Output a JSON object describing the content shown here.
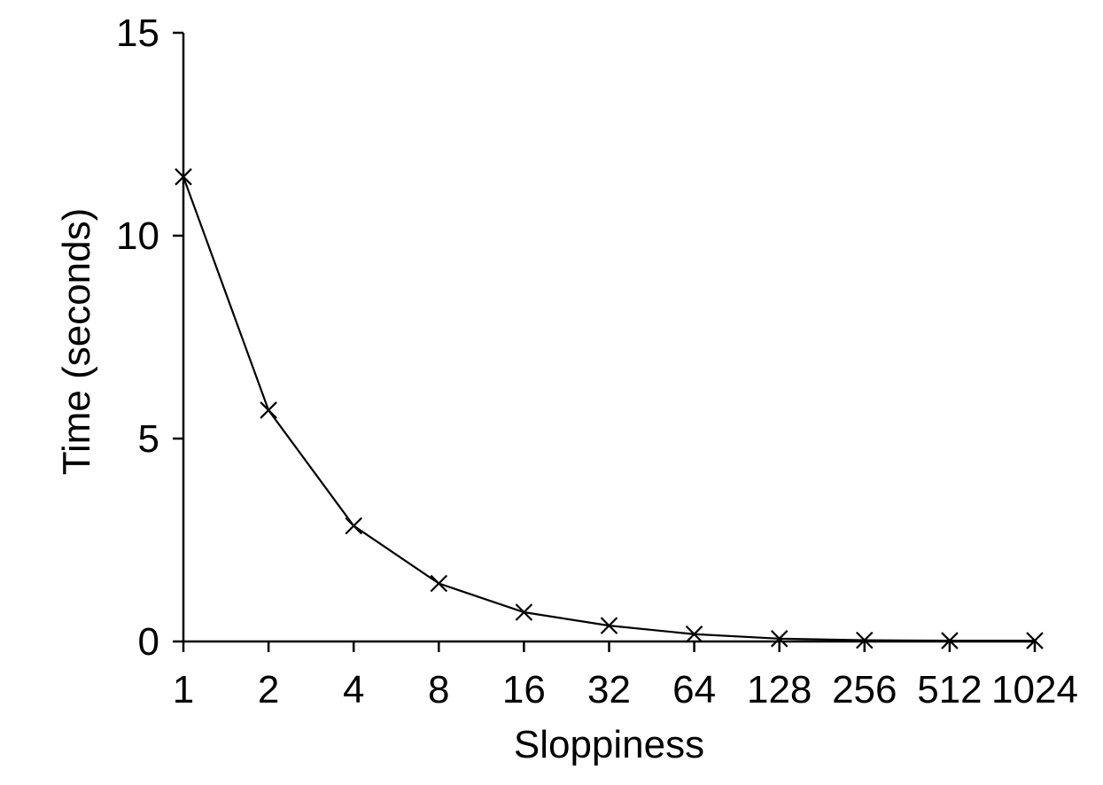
{
  "chart_data": {
    "type": "line",
    "title": "",
    "xlabel": "Sloppiness",
    "ylabel": "Time (seconds)",
    "x": [
      "1",
      "2",
      "4",
      "8",
      "16",
      "32",
      "64",
      "128",
      "256",
      "512",
      "1024"
    ],
    "y_ticks": [
      "0",
      "5",
      "10",
      "15"
    ],
    "ylim": [
      0,
      15
    ],
    "x_scale": "log2",
    "grid": false,
    "legend": "none",
    "series": [
      {
        "marker": "x",
        "color": "#000000",
        "values": [
          11.45,
          5.7,
          2.85,
          1.43,
          0.72,
          0.39,
          0.18,
          0.07,
          0.03,
          0.02,
          0.02
        ]
      }
    ]
  }
}
